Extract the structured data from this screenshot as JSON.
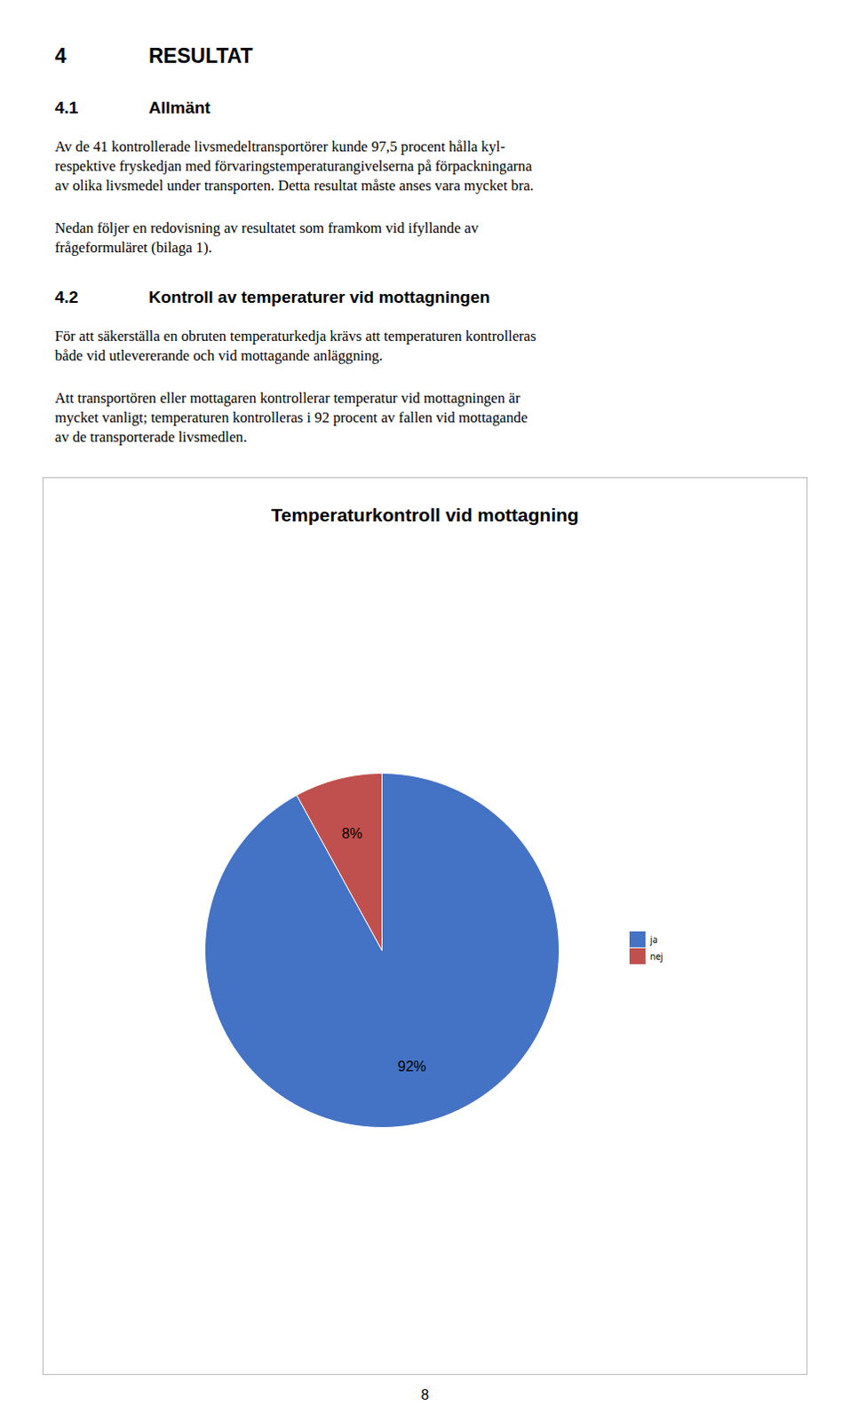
{
  "page": {
    "heading": [
      "4",
      "RESULTAT"
    ],
    "sections": [
      {
        "heading": [
          "4.1",
          "Allmänt"
        ],
        "paragraphs": [
          [
            "Av de 41 kontrollerade livsmedeltransportörer kunde 97,5 procent hålla kyl-",
            "respektive fryskedjan med förvaringstemperaturangivelserna på förpackningarna",
            "av olika livsmedel under transporten. Detta resultat måste anses vara mycket bra."
          ],
          [
            "Nedan följer en redovisning av resultatet som framkom vid ifyllande av",
            "frågeformuläret (bilaga 1)."
          ]
        ]
      },
      {
        "heading": [
          "4.2",
          "Kontroll av temperaturer vid mottagningen"
        ],
        "paragraphs": [
          [
            "För att säkerställa en obruten temperaturkedja krävs att temperaturen kontrolleras",
            "både vid utlevererande och vid mottagande anläggning."
          ],
          [
            "Att transportören eller mottagaren kontrollerar temperatur vid mottagningen är",
            "mycket vanligt; temperaturen kontrolleras i 92 procent av fallen vid mottagande",
            "av de transporterade livsmedlen."
          ]
        ]
      }
    ],
    "page_number": "8"
  },
  "chart_data": {
    "type": "pie",
    "title": "Temperaturkontroll vid mottagning",
    "categories": [
      "ja",
      "nej"
    ],
    "values": [
      92,
      8
    ],
    "value_labels": [
      "92%",
      "8%"
    ],
    "data_labels": true,
    "colors": [
      "#4472C4",
      "#C0504D"
    ],
    "legend": "right"
  }
}
